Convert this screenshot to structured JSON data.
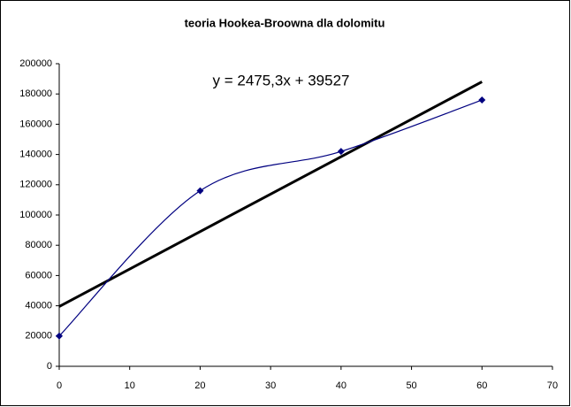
{
  "chart_data": {
    "type": "scatter",
    "title": "teoria Hookea-Broowna dla dolomitu",
    "annotation": "y = 2475,3x + 39527",
    "x": [
      0,
      20,
      40,
      60
    ],
    "values": [
      20000,
      116000,
      142000,
      176000
    ],
    "color": "#000080",
    "smooth": true,
    "trendline": {
      "x": [
        0,
        60
      ],
      "values": [
        39527,
        188045
      ],
      "color": "#000000"
    },
    "xlim": [
      0,
      70
    ],
    "xticks": [
      0,
      10,
      20,
      30,
      40,
      50,
      60,
      70
    ],
    "ylim": [
      0,
      200000
    ],
    "yticks": [
      0,
      20000,
      40000,
      60000,
      80000,
      100000,
      120000,
      140000,
      160000,
      180000,
      200000
    ],
    "grid": false
  }
}
